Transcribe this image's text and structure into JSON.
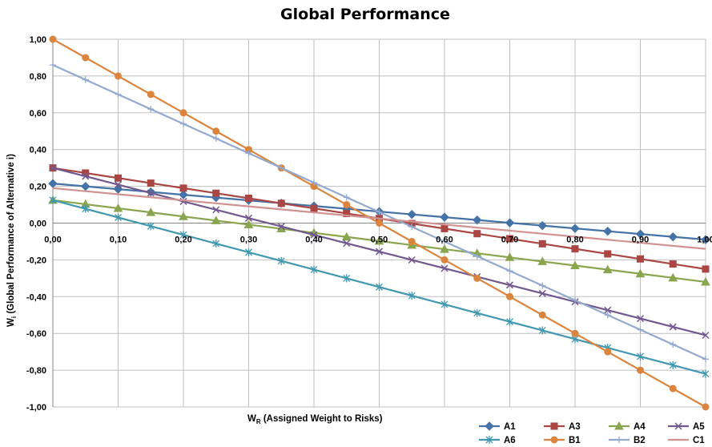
{
  "chart_data": {
    "type": "line",
    "title": "Global Performance",
    "xlabel_main": "W",
    "xlabel_sub": "R",
    "xlabel_rest": " (Assigned Weight to Risks)",
    "ylabel_main": "W",
    "ylabel_sub": "i",
    "ylabel_rest": " (Global Performance of Alternative i)",
    "xlim": [
      0,
      1
    ],
    "ylim": [
      -1,
      1
    ],
    "grid": true,
    "legend_position": "bottom-right",
    "x_ticks": [
      "0,00",
      "0,10",
      "0,20",
      "0,30",
      "0,40",
      "0,50",
      "0,60",
      "0,70",
      "0,80",
      "0,90",
      "1,00"
    ],
    "y_ticks": [
      "1,00",
      "0,80",
      "0,60",
      "0,40",
      "0,20",
      "0,00",
      "-0,20",
      "-0,40",
      "-0,60",
      "-0,80",
      "-1,00"
    ],
    "x": [
      0.0,
      0.05,
      0.1,
      0.15,
      0.2,
      0.25,
      0.3,
      0.35,
      0.4,
      0.45,
      0.5,
      0.55,
      0.6,
      0.65,
      0.7,
      0.75,
      0.8,
      0.85,
      0.9,
      0.95,
      1.0
    ],
    "series": [
      {
        "name": "A1",
        "color": "#4572A7",
        "marker": "diamond",
        "start": 0.215,
        "end": -0.09
      },
      {
        "name": "A3",
        "color": "#AA4643",
        "marker": "square",
        "start": 0.3,
        "end": -0.25
      },
      {
        "name": "A4",
        "color": "#89A54E",
        "marker": "triangle",
        "start": 0.125,
        "end": -0.32
      },
      {
        "name": "A5",
        "color": "#71588F",
        "marker": "x",
        "start": 0.3,
        "end": -0.61
      },
      {
        "name": "A6",
        "color": "#4198AF",
        "marker": "star",
        "start": 0.125,
        "end": -0.82
      },
      {
        "name": "B1",
        "color": "#DB843D",
        "marker": "circle",
        "start": 1.0,
        "end": -1.0
      },
      {
        "name": "B2",
        "color": "#93A9CF",
        "marker": "plus",
        "start": 0.86,
        "end": -0.74
      },
      {
        "name": "C1",
        "color": "#D19392",
        "marker": "none",
        "start": 0.19,
        "end": -0.14
      }
    ]
  }
}
